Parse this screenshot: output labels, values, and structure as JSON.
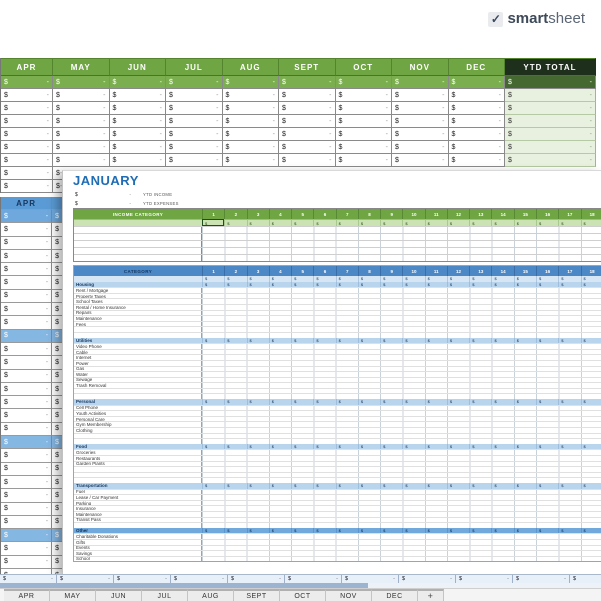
{
  "logo": {
    "check": "✓",
    "brand_bold": "smart",
    "brand_light": "sheet"
  },
  "currency": "$",
  "dash": "-",
  "top_table": {
    "months": [
      "APR",
      "MAY",
      "JUN",
      "JUL",
      "AUG",
      "SEPT",
      "OCT",
      "NOV",
      "DEC"
    ],
    "ytd_label": "YTD TOTAL",
    "data_row_count": 6,
    "extra_left_rows": 2
  },
  "left_sheet": {
    "header": "APR",
    "row_count": 27,
    "highlight_rows": [
      8,
      16,
      23
    ]
  },
  "january": {
    "title": "JANUARY",
    "summary": [
      {
        "amount": "$",
        "value": "-",
        "label": "YTD INCOME"
      },
      {
        "amount": "$",
        "value": "-",
        "label": "YTD EXPENSES"
      }
    ],
    "income_table": {
      "header": "INCOME CATEGORY",
      "day_count": 18,
      "blank_rows": 5
    },
    "expense_table": {
      "header": "CATEGORY",
      "day_count": 18,
      "sections": [
        {
          "name": "Housing",
          "style": "light",
          "blanks": 2,
          "items": [
            "Rent / Mortgage",
            "Property Taxes",
            "School Taxes",
            "Rental / Home Insurance",
            "Repairs",
            "Maintenance",
            "Fees"
          ]
        },
        {
          "name": "Utilities",
          "style": "light",
          "blanks": 2,
          "items": [
            "Video Phone",
            "Cable",
            "Internet",
            "Power",
            "Gas",
            "Water",
            "Sewage",
            "Trash Removal"
          ]
        },
        {
          "name": "Personal",
          "style": "light",
          "blanks": 2,
          "items": [
            "Cell Phone",
            "Youth Activities",
            "Personal Care",
            "Gym Membership",
            "Clothing"
          ]
        },
        {
          "name": "Food",
          "style": "light",
          "blanks": 3,
          "items": [
            "Groceries",
            "Restaurants",
            "Garden Plants"
          ]
        },
        {
          "name": "Transportation",
          "style": "light",
          "blanks": 1,
          "items": [
            "Fuel",
            "Lease / Car Payment",
            "Parking",
            "Insurance",
            "Maintenance",
            "Transit Pass"
          ]
        },
        {
          "name": "Other",
          "style": "dark",
          "blanks": 0,
          "items": [
            "Charitable Donations",
            "Gifts",
            "Events",
            "Savings",
            "School"
          ]
        }
      ]
    }
  },
  "bottom_row": {
    "cell_count": 11
  },
  "tabs": {
    "items": [
      "APR",
      "MAY",
      "JUN",
      "JUL",
      "AUG",
      "SEPT",
      "OCT",
      "NOV",
      "DEC"
    ],
    "add_label": "+"
  },
  "colors": {
    "green_header": "#6FA543",
    "green_header_dark": "#1E2F1C",
    "green_totals_row": "#7BAE4E",
    "green_ytd_cell": "#E8F1DF",
    "income_subrow_green": "#CBE3B3",
    "blue_header": "#4C87C6",
    "blue_section_row": "#B9D5ED",
    "blue_section_dark": "#72A9DC",
    "blue_sheet_header": "#5B9BD5",
    "blue_highlight_row": "#85B7E3",
    "title_blue": "#1E6DB5",
    "scrollbar_thumb": "#9DB4D0",
    "tab_background": "#ECECEC"
  }
}
